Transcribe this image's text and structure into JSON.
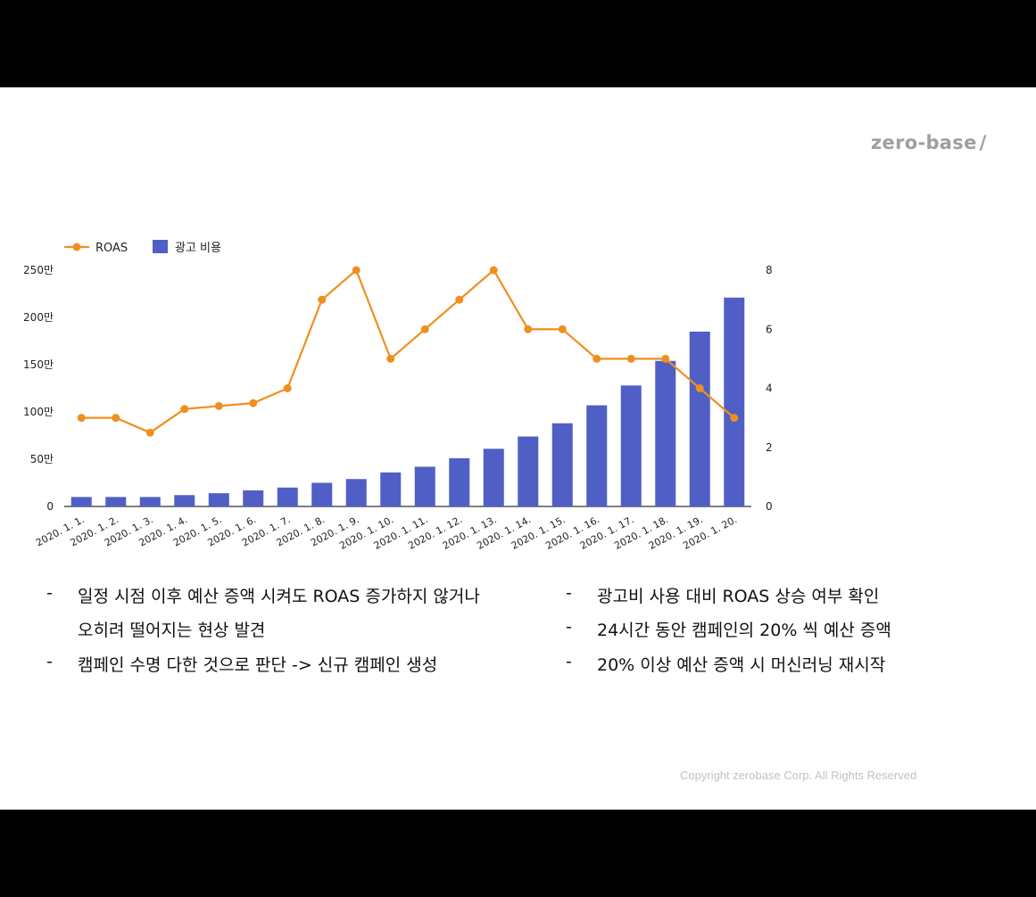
{
  "brand": {
    "name": "zero-base",
    "mark": "/"
  },
  "copyright": "Copyright zerobase Corp. All Rights Reserved",
  "colors": {
    "bar": "#4f5fc6",
    "line": "#ef8f20",
    "text": "#222222",
    "axis": "#333333"
  },
  "chart_data": {
    "type": "bar+line",
    "title": "",
    "categories": [
      "2020. 1. 1.",
      "2020. 1. 2.",
      "2020. 1. 3.",
      "2020. 1. 4.",
      "2020. 1. 5.",
      "2020. 1. 6.",
      "2020. 1. 7.",
      "2020. 1. 8.",
      "2020. 1. 9.",
      "2020. 1. 10.",
      "2020. 1. 11.",
      "2020. 1. 12.",
      "2020. 1. 13.",
      "2020. 1. 14.",
      "2020. 1. 15.",
      "2020. 1. 16.",
      "2020. 1. 17.",
      "2020. 1. 18.",
      "2020. 1. 19.",
      "2020. 1. 20."
    ],
    "series": [
      {
        "name": "광고 비용",
        "type": "bar",
        "axis": "left",
        "values": [
          100000,
          100000,
          100000,
          120000,
          140000,
          170000,
          200000,
          250000,
          290000,
          360000,
          420000,
          510000,
          610000,
          740000,
          880000,
          1070000,
          1280000,
          1540000,
          1850000,
          2210000
        ]
      },
      {
        "name": "ROAS",
        "type": "line",
        "axis": "right",
        "values": [
          3,
          3,
          2.5,
          3.3,
          3.4,
          3.5,
          4,
          7,
          8,
          5,
          6,
          7,
          8,
          6,
          6,
          5,
          5,
          5,
          4,
          3
        ]
      }
    ],
    "y_left": {
      "ylim": [
        0,
        2500000
      ],
      "ticks": [
        "0",
        "50만",
        "100만",
        "150만",
        "200만",
        "250만"
      ]
    },
    "y_right": {
      "ylim": [
        0,
        8
      ],
      "ticks": [
        "0",
        "2",
        "4",
        "6",
        "8"
      ]
    },
    "legend": [
      {
        "name": "ROAS",
        "marker": "line-dot"
      },
      {
        "name": "광고 비용",
        "marker": "square"
      }
    ],
    "legend_position": "top-left",
    "grid": false
  },
  "bullets_left": [
    {
      "dash": "-",
      "text": "일정 시점 이후 예산 증액 시켜도 ROAS 증가하지 않거나"
    },
    {
      "dash": "",
      "text": "오히려 떨어지는 현상 발견"
    },
    {
      "dash": "-",
      "text": "캠페인 수명 다한 것으로 판단 -> 신규 캠페인 생성"
    }
  ],
  "bullets_right": [
    {
      "dash": "-",
      "text": "광고비 사용 대비  ROAS 상승 여부 확인"
    },
    {
      "dash": "-",
      "text": "24시간 동안 캠페인의 20% 씩 예산 증액"
    },
    {
      "dash": "-",
      "text": "20% 이상 예산 증액 시 머신러닝 재시작"
    }
  ]
}
